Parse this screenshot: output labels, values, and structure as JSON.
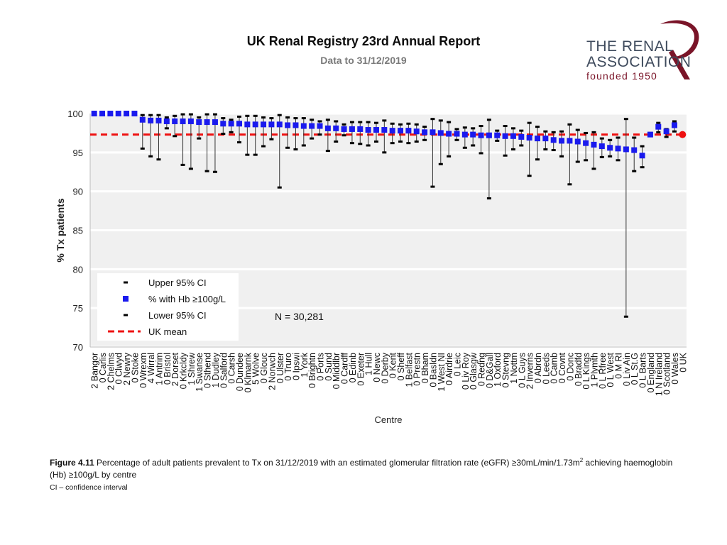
{
  "header": {
    "title": "UK Renal Registry 23rd Annual Report",
    "subtitle": "Data to 31/12/2019"
  },
  "logo": {
    "line1": "THE RENAL",
    "line2": "ASSOCIATION",
    "line3": "founded 1950"
  },
  "caption": {
    "figure_label": "Figure 4.11",
    "text_before": " Percentage of adult patients prevalent to Tx on 31/12/2019 with an estimated glomerular filtration rate (eGFR) ≥30mL/min/1.73m",
    "superscript": "2",
    "text_after": " achieving haemoglobin (Hb) ≥100g/L by centre",
    "ci_note": "CI – confidence interval"
  },
  "colors": {
    "point": "#1a1aee",
    "uk_point": "#ee1111",
    "mean_line": "#ee1111",
    "ci": "#000000",
    "plot_bg": "#f0f0f0",
    "grid": "#ffffff",
    "logo_swoosh": "#7a1428"
  },
  "chart_data": {
    "type": "scatter",
    "ylabel": "% Tx patients",
    "xlabel": "Centre",
    "ylim": [
      70,
      100
    ],
    "yticks": [
      70,
      75,
      80,
      85,
      90,
      95,
      100
    ],
    "grid": true,
    "uk_mean": 97.3,
    "annotation": "N = 30,281",
    "legend": {
      "placement": "bottom-left",
      "entries": [
        "Upper 95% CI",
        "% with Hb ≥100g/L",
        "Lower 95% CI",
        "UK mean"
      ]
    },
    "centres": [
      {
        "label": "2 Bangor",
        "value": 100
      },
      {
        "label": "0 Carlis",
        "value": 100
      },
      {
        "label": "2 Chelms",
        "value": 100
      },
      {
        "label": "0 Clwyd",
        "value": 100
      },
      {
        "label": "2 Newry",
        "value": 100
      },
      {
        "label": "0 Stoke",
        "value": 100
      },
      {
        "label": "0 Wrexm",
        "value": 99.2,
        "upper": 99.8,
        "lower": 95.5
      },
      {
        "label": "4 Wirral",
        "value": 99.1,
        "upper": 99.8,
        "lower": 94.5
      },
      {
        "label": "1 Antrim",
        "value": 99.1,
        "upper": 99.8,
        "lower": 94.1
      },
      {
        "label": "0 Bristol",
        "value": 99.0,
        "upper": 99.5,
        "lower": 98.1
      },
      {
        "label": "2 Dorset",
        "value": 99.0,
        "upper": 99.7,
        "lower": 97.1
      },
      {
        "label": "0 Krkcldy",
        "value": 99.0,
        "upper": 99.9,
        "lower": 93.4
      },
      {
        "label": "1 Shrew",
        "value": 99.0,
        "upper": 99.9,
        "lower": 92.9
      },
      {
        "label": "1 Swanse",
        "value": 98.9,
        "upper": 99.5,
        "lower": 96.8
      },
      {
        "label": "0 Sthend",
        "value": 98.9,
        "upper": 99.9,
        "lower": 92.6
      },
      {
        "label": "1 Dudley",
        "value": 98.9,
        "upper": 99.9,
        "lower": 92.5
      },
      {
        "label": "0 Salford",
        "value": 98.7,
        "upper": 99.4,
        "lower": 97.4
      },
      {
        "label": "0 Carsh",
        "value": 98.7,
        "upper": 99.2,
        "lower": 97.6
      },
      {
        "label": "0 Dundee",
        "value": 98.7,
        "upper": 99.6,
        "lower": 96.3
      },
      {
        "label": "0 Klmarnk",
        "value": 98.6,
        "upper": 99.7,
        "lower": 94.7
      },
      {
        "label": "5 Wolve",
        "value": 98.6,
        "upper": 99.7,
        "lower": 94.7
      },
      {
        "label": "0 Glouc",
        "value": 98.6,
        "upper": 99.5,
        "lower": 95.8
      },
      {
        "label": "2 Norwch",
        "value": 98.6,
        "upper": 99.4,
        "lower": 96.7
      },
      {
        "label": "0 Ulster",
        "value": 98.6,
        "upper": 99.8,
        "lower": 90.5
      },
      {
        "label": "0 Truro",
        "value": 98.5,
        "upper": 99.5,
        "lower": 95.6
      },
      {
        "label": "0 Ipswi",
        "value": 98.5,
        "upper": 99.4,
        "lower": 95.4
      },
      {
        "label": "1 York",
        "value": 98.4,
        "upper": 99.4,
        "lower": 95.9
      },
      {
        "label": "0 Brightn",
        "value": 98.4,
        "upper": 99.2,
        "lower": 96.8
      },
      {
        "label": "0 Ports",
        "value": 98.4,
        "upper": 99.0,
        "lower": 97.3
      },
      {
        "label": "0 Sund",
        "value": 98.1,
        "upper": 99.2,
        "lower": 95.2
      },
      {
        "label": "0 Middlbr",
        "value": 98.1,
        "upper": 99.0,
        "lower": 96.4
      },
      {
        "label": "0 Cardff",
        "value": 98.0,
        "upper": 98.6,
        "lower": 97.2
      },
      {
        "label": "0 Edinb",
        "value": 98.0,
        "upper": 98.9,
        "lower": 96.2
      },
      {
        "label": "0 Exeter",
        "value": 98.0,
        "upper": 98.9,
        "lower": 96.1
      },
      {
        "label": "1 Hull",
        "value": 97.9,
        "upper": 98.9,
        "lower": 95.9
      },
      {
        "label": "0 Newc",
        "value": 97.9,
        "upper": 98.8,
        "lower": 96.4
      },
      {
        "label": "0 Derby",
        "value": 97.9,
        "upper": 99.1,
        "lower": 95.0
      },
      {
        "label": "0 Kent",
        "value": 97.8,
        "upper": 98.7,
        "lower": 96.2
      },
      {
        "label": "0 Sheff",
        "value": 97.8,
        "upper": 98.6,
        "lower": 96.4
      },
      {
        "label": "1 Belfast",
        "value": 97.8,
        "upper": 98.7,
        "lower": 96.2
      },
      {
        "label": "0 Prestn",
        "value": 97.7,
        "upper": 98.6,
        "lower": 96.4
      },
      {
        "label": "0 Bham",
        "value": 97.6,
        "upper": 98.3,
        "lower": 96.6
      },
      {
        "label": "0 Basldn",
        "value": 97.6,
        "upper": 99.3,
        "lower": 90.6
      },
      {
        "label": "1 West NI",
        "value": 97.5,
        "upper": 99.1,
        "lower": 93.5
      },
      {
        "label": "0 Airdrie",
        "value": 97.4,
        "upper": 98.9,
        "lower": 94.5
      },
      {
        "label": "0 Leic",
        "value": 97.4,
        "upper": 98.0,
        "lower": 96.6
      },
      {
        "label": "0 Liv Roy",
        "value": 97.3,
        "upper": 98.2,
        "lower": 95.6
      },
      {
        "label": "0 Glasgw",
        "value": 97.3,
        "upper": 98.1,
        "lower": 95.9
      },
      {
        "label": "0 Redng",
        "value": 97.2,
        "upper": 98.4,
        "lower": 94.9
      },
      {
        "label": "0 D&Gall",
        "value": 97.2,
        "upper": 99.2,
        "lower": 89.1
      },
      {
        "label": "1 Oxford",
        "value": 97.2,
        "upper": 97.8,
        "lower": 96.5
      },
      {
        "label": "0 Stevng",
        "value": 97.1,
        "upper": 98.4,
        "lower": 94.6
      },
      {
        "label": "1 Nottm",
        "value": 97.1,
        "upper": 98.1,
        "lower": 95.4
      },
      {
        "label": "0 L Guys",
        "value": 97.0,
        "upper": 97.8,
        "lower": 95.9
      },
      {
        "label": "2 Inverns",
        "value": 96.9,
        "upper": 98.8,
        "lower": 92.0
      },
      {
        "label": "0 Abrdn",
        "value": 96.8,
        "upper": 98.3,
        "lower": 94.1
      },
      {
        "label": "0 Leeds",
        "value": 96.8,
        "upper": 97.7,
        "lower": 95.4
      },
      {
        "label": "0 Camb",
        "value": 96.6,
        "upper": 97.6,
        "lower": 95.3
      },
      {
        "label": "0 Covnt",
        "value": 96.5,
        "upper": 97.7,
        "lower": 94.5
      },
      {
        "label": "0 Donc",
        "value": 96.5,
        "upper": 98.6,
        "lower": 90.9
      },
      {
        "label": "0 Bradfd",
        "value": 96.4,
        "upper": 97.9,
        "lower": 93.8
      },
      {
        "label": "0 L Kings",
        "value": 96.2,
        "upper": 97.5,
        "lower": 94.0
      },
      {
        "label": "1 Plymth",
        "value": 96.0,
        "upper": 97.6,
        "lower": 92.9
      },
      {
        "label": "0 L Rfree",
        "value": 95.8,
        "upper": 96.8,
        "lower": 94.4
      },
      {
        "label": "0 L West",
        "value": 95.6,
        "upper": 96.6,
        "lower": 94.5
      },
      {
        "label": "0 M RI",
        "value": 95.5,
        "upper": 96.9,
        "lower": 94.0
      },
      {
        "label": "0 Liv Ain",
        "value": 95.4,
        "upper": 99.3,
        "lower": 73.9
      },
      {
        "label": "0 L St.G",
        "value": 95.3,
        "upper": 96.9,
        "lower": 92.6
      },
      {
        "label": "0 L Barts",
        "value": 94.6,
        "upper": 95.8,
        "lower": 93.1
      },
      {
        "label": "0 England",
        "value": 97.3,
        "upper": 97.5,
        "lower": 97.1
      },
      {
        "label": "1 N Ireland",
        "value": 98.3,
        "upper": 98.8,
        "lower": 97.6
      },
      {
        "label": "0 Scotland",
        "value": 97.7,
        "upper": 98.0,
        "lower": 97.0
      },
      {
        "label": "0 Wales",
        "value": 98.5,
        "upper": 99.0,
        "lower": 97.7
      },
      {
        "label": "0 UK",
        "value": 97.3,
        "uk": true
      }
    ]
  }
}
